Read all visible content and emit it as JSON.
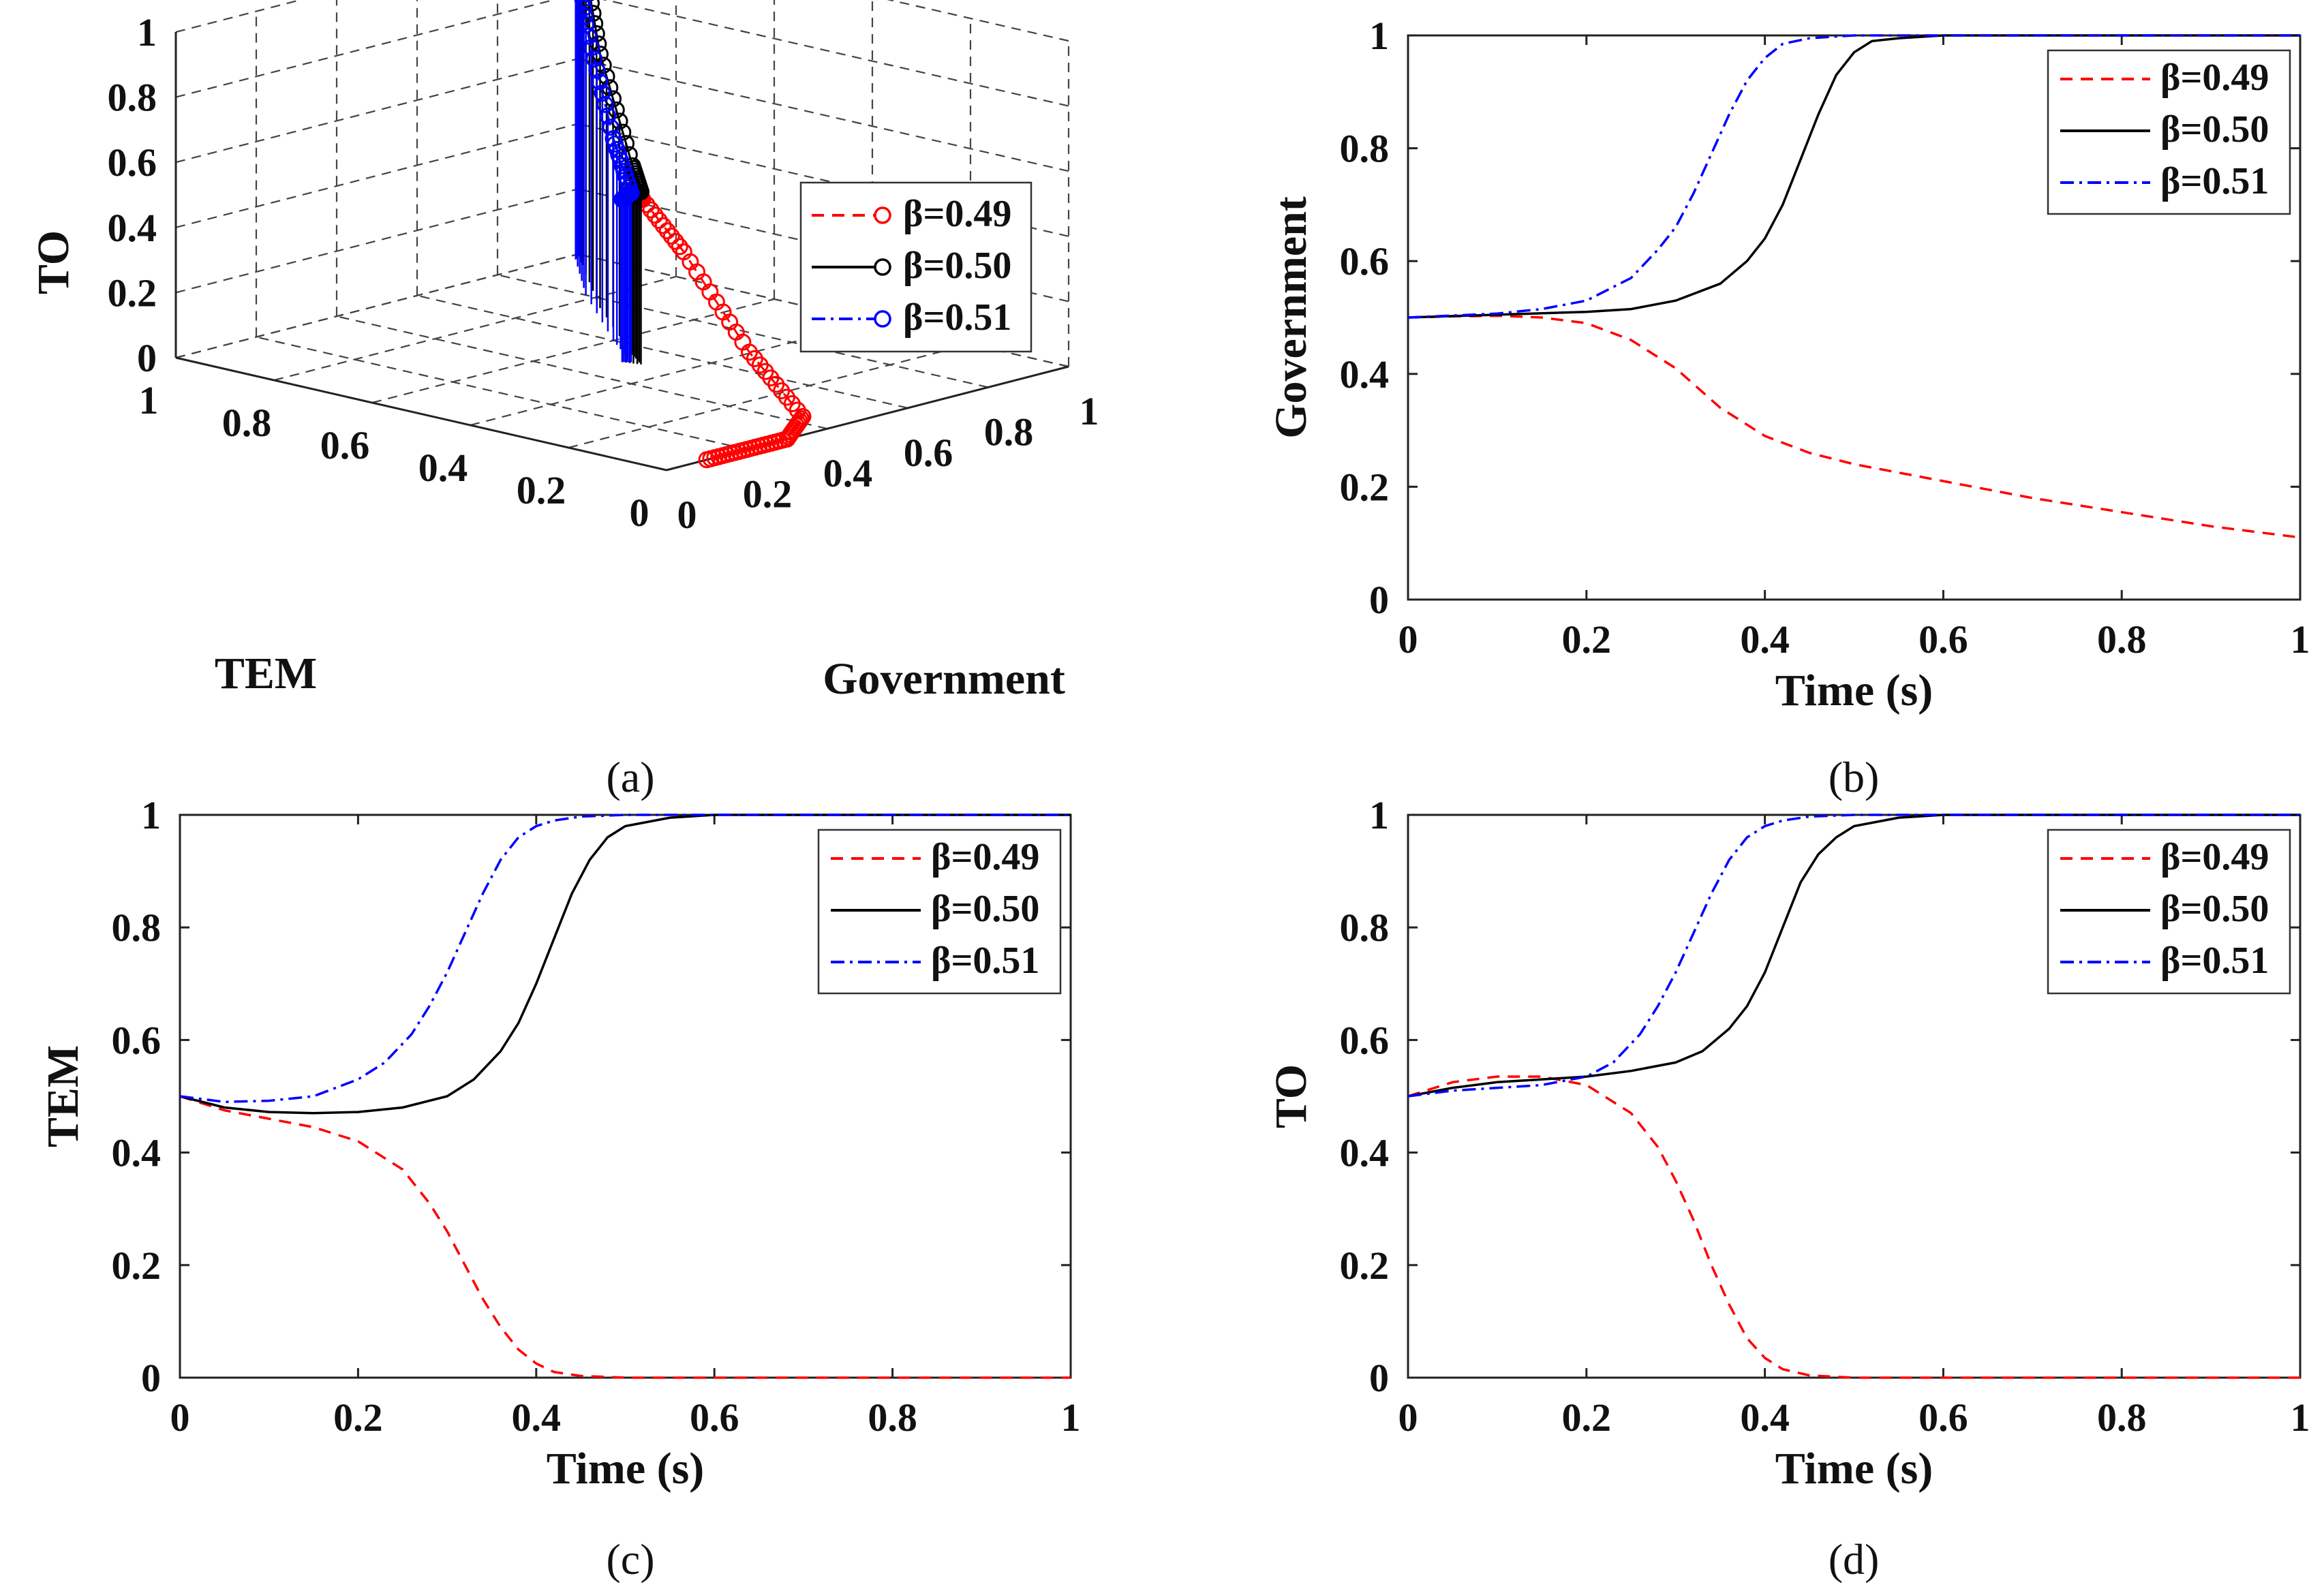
{
  "legend_labels": [
    "β=0.49",
    "β=0.50",
    "β=0.51"
  ],
  "series_colors": {
    "β=0.49": "#ff0000",
    "β=0.50": "#000000",
    "β=0.51": "#0000ff"
  },
  "series_dash": {
    "β=0.49": "dashed",
    "β=0.50": "solid",
    "β=0.51": "dash-dot"
  },
  "captions": [
    "(a)",
    "(b)",
    "(c)",
    "(d)"
  ],
  "chart_data": [
    {
      "type": "line3d",
      "panel": "(a)",
      "axes": {
        "x": "Government",
        "y": "TEM",
        "z": "TO"
      },
      "xlim": [
        0,
        1
      ],
      "ylim": [
        0,
        1
      ],
      "zlim": [
        0,
        1
      ],
      "ticks": {
        "x": [
          "0",
          "0.2",
          "0.4",
          "0.6",
          "0.8",
          "1"
        ],
        "y": [
          "0",
          "0.2",
          "0.4",
          "0.6",
          "0.8",
          "1"
        ],
        "z": [
          "0",
          "0.2",
          "0.4",
          "0.6",
          "0.8",
          "1"
        ]
      },
      "grid": true,
      "legend": "right",
      "markers": "circle",
      "series": [
        {
          "name": "β=0.49",
          "points": [
            [
              0.5,
              0.5,
              0.5
            ],
            [
              0.5,
              0.48,
              0.53
            ],
            [
              0.49,
              0.45,
              0.52
            ],
            [
              0.47,
              0.35,
              0.4
            ],
            [
              0.45,
              0.2,
              0.15
            ],
            [
              0.4,
              0.05,
              0.02
            ],
            [
              0.3,
              0.0,
              0.0
            ],
            [
              0.2,
              0.0,
              0.0
            ],
            [
              0.1,
              0.0,
              0.0
            ]
          ]
        },
        {
          "name": "β=0.50",
          "points": [
            [
              0.5,
              0.5,
              0.5
            ],
            [
              0.51,
              0.47,
              0.53
            ],
            [
              0.55,
              0.52,
              0.58
            ],
            [
              0.75,
              0.75,
              0.78
            ],
            [
              0.95,
              0.95,
              0.96
            ],
            [
              1,
              1,
              1
            ]
          ]
        },
        {
          "name": "β=0.51",
          "points": [
            [
              0.5,
              0.5,
              0.5
            ],
            [
              0.51,
              0.49,
              0.52
            ],
            [
              0.6,
              0.6,
              0.62
            ],
            [
              0.8,
              0.82,
              0.83
            ],
            [
              0.97,
              0.98,
              0.98
            ],
            [
              1,
              1,
              1
            ]
          ]
        }
      ]
    },
    {
      "type": "line",
      "panel": "(b)",
      "xlabel": "Time (s)",
      "ylabel": "Government",
      "xlim": [
        0,
        1
      ],
      "ylim": [
        0,
        1
      ],
      "xticks": [
        "0",
        "0.2",
        "0.4",
        "0.6",
        "0.8",
        "1"
      ],
      "yticks": [
        "0",
        "0.2",
        "0.4",
        "0.6",
        "0.8",
        "1"
      ],
      "legend": "top-right",
      "series": [
        {
          "name": "β=0.49",
          "x": [
            0,
            0.05,
            0.1,
            0.15,
            0.2,
            0.25,
            0.3,
            0.35,
            0.4,
            0.45,
            0.5,
            0.6,
            0.7,
            0.8,
            0.9,
            1.0
          ],
          "y": [
            0.5,
            0.502,
            0.503,
            0.5,
            0.49,
            0.46,
            0.41,
            0.34,
            0.29,
            0.26,
            0.24,
            0.21,
            0.18,
            0.155,
            0.13,
            0.11
          ]
        },
        {
          "name": "β=0.50",
          "x": [
            0,
            0.1,
            0.2,
            0.25,
            0.3,
            0.35,
            0.38,
            0.4,
            0.42,
            0.44,
            0.46,
            0.48,
            0.5,
            0.52,
            0.55,
            0.6,
            0.7,
            1.0
          ],
          "y": [
            0.5,
            0.505,
            0.51,
            0.515,
            0.53,
            0.56,
            0.6,
            0.64,
            0.7,
            0.78,
            0.86,
            0.93,
            0.97,
            0.99,
            0.995,
            1,
            1,
            1
          ]
        },
        {
          "name": "β=0.51",
          "x": [
            0,
            0.1,
            0.15,
            0.2,
            0.25,
            0.28,
            0.3,
            0.32,
            0.34,
            0.36,
            0.38,
            0.4,
            0.42,
            0.45,
            0.5,
            0.6,
            1.0
          ],
          "y": [
            0.5,
            0.507,
            0.515,
            0.53,
            0.57,
            0.62,
            0.66,
            0.72,
            0.79,
            0.86,
            0.92,
            0.96,
            0.985,
            0.995,
            1,
            1,
            1
          ]
        }
      ]
    },
    {
      "type": "line",
      "panel": "(c)",
      "xlabel": "Time (s)",
      "ylabel": "TEM",
      "xlim": [
        0,
        1
      ],
      "ylim": [
        0,
        1
      ],
      "xticks": [
        "0",
        "0.2",
        "0.4",
        "0.6",
        "0.8",
        "1"
      ],
      "yticks": [
        "0",
        "0.2",
        "0.4",
        "0.6",
        "0.8",
        "1"
      ],
      "legend": "top-right",
      "series": [
        {
          "name": "β=0.49",
          "x": [
            0,
            0.05,
            0.1,
            0.15,
            0.2,
            0.25,
            0.28,
            0.3,
            0.32,
            0.34,
            0.36,
            0.38,
            0.4,
            0.42,
            0.45,
            0.5,
            0.6,
            1.0
          ],
          "y": [
            0.5,
            0.475,
            0.46,
            0.445,
            0.42,
            0.37,
            0.31,
            0.26,
            0.2,
            0.14,
            0.09,
            0.05,
            0.025,
            0.01,
            0.003,
            0,
            0,
            0
          ]
        },
        {
          "name": "β=0.50",
          "x": [
            0,
            0.05,
            0.1,
            0.15,
            0.2,
            0.25,
            0.3,
            0.33,
            0.36,
            0.38,
            0.4,
            0.42,
            0.44,
            0.46,
            0.48,
            0.5,
            0.55,
            0.6,
            1.0
          ],
          "y": [
            0.5,
            0.48,
            0.472,
            0.47,
            0.472,
            0.48,
            0.5,
            0.53,
            0.58,
            0.63,
            0.7,
            0.78,
            0.86,
            0.92,
            0.96,
            0.98,
            0.995,
            1,
            1
          ]
        },
        {
          "name": "β=0.51",
          "x": [
            0,
            0.05,
            0.1,
            0.15,
            0.2,
            0.23,
            0.26,
            0.28,
            0.3,
            0.32,
            0.34,
            0.36,
            0.38,
            0.4,
            0.42,
            0.45,
            0.5,
            1.0
          ],
          "y": [
            0.5,
            0.49,
            0.492,
            0.5,
            0.53,
            0.56,
            0.61,
            0.66,
            0.72,
            0.79,
            0.86,
            0.92,
            0.96,
            0.98,
            0.99,
            0.997,
            1,
            1
          ]
        }
      ]
    },
    {
      "type": "line",
      "panel": "(d)",
      "xlabel": "Time (s)",
      "ylabel": "TO",
      "xlim": [
        0,
        1
      ],
      "ylim": [
        0,
        1
      ],
      "xticks": [
        "0",
        "0.2",
        "0.4",
        "0.6",
        "0.8",
        "1"
      ],
      "yticks": [
        "0",
        "0.2",
        "0.4",
        "0.6",
        "0.8",
        "1"
      ],
      "legend": "top-right",
      "series": [
        {
          "name": "β=0.49",
          "x": [
            0,
            0.05,
            0.1,
            0.15,
            0.2,
            0.25,
            0.28,
            0.3,
            0.32,
            0.34,
            0.36,
            0.38,
            0.4,
            0.42,
            0.45,
            0.5,
            0.6,
            1.0
          ],
          "y": [
            0.5,
            0.525,
            0.535,
            0.535,
            0.52,
            0.47,
            0.41,
            0.35,
            0.28,
            0.2,
            0.13,
            0.07,
            0.035,
            0.015,
            0.004,
            0,
            0,
            0
          ]
        },
        {
          "name": "β=0.50",
          "x": [
            0,
            0.05,
            0.1,
            0.15,
            0.2,
            0.25,
            0.3,
            0.33,
            0.36,
            0.38,
            0.4,
            0.42,
            0.44,
            0.46,
            0.48,
            0.5,
            0.55,
            0.6,
            1.0
          ],
          "y": [
            0.5,
            0.515,
            0.525,
            0.53,
            0.535,
            0.545,
            0.56,
            0.58,
            0.62,
            0.66,
            0.72,
            0.8,
            0.88,
            0.93,
            0.96,
            0.98,
            0.995,
            1,
            1
          ]
        },
        {
          "name": "β=0.51",
          "x": [
            0,
            0.05,
            0.1,
            0.15,
            0.2,
            0.23,
            0.26,
            0.28,
            0.3,
            0.32,
            0.34,
            0.36,
            0.38,
            0.4,
            0.42,
            0.45,
            0.5,
            1.0
          ],
          "y": [
            0.5,
            0.51,
            0.515,
            0.52,
            0.535,
            0.56,
            0.61,
            0.66,
            0.72,
            0.79,
            0.86,
            0.92,
            0.96,
            0.98,
            0.99,
            0.997,
            1,
            1
          ]
        }
      ]
    }
  ]
}
